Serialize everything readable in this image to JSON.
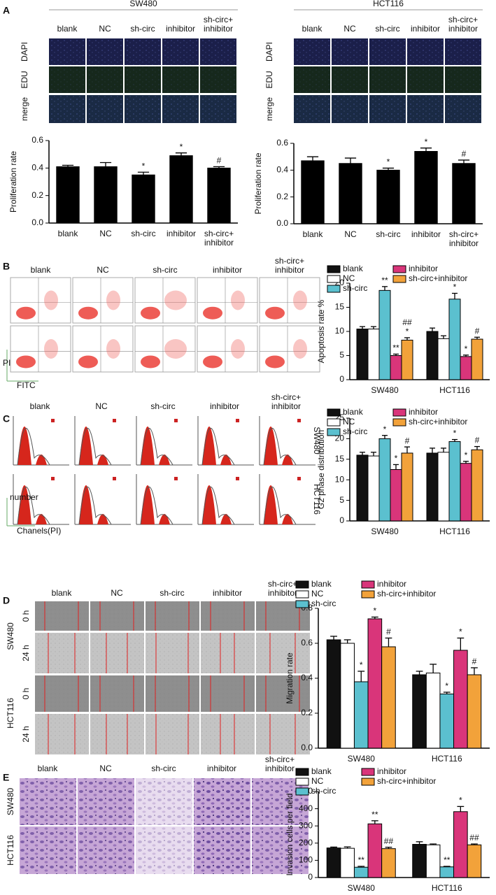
{
  "figure": {
    "panels": [
      "A",
      "B",
      "C",
      "D",
      "E"
    ],
    "cell_lines": [
      "SW480",
      "HCT116"
    ],
    "conditions": [
      "blank",
      "NC",
      "sh-circ",
      "inhibitor",
      "sh-circ+\ninhibitor"
    ],
    "stains": [
      "DAPI",
      "EDU",
      "merge"
    ],
    "flow_axes": [
      "PI",
      "FITC"
    ],
    "cycle_axes": [
      "number",
      "Chanels(PI)"
    ],
    "times": [
      "0 h",
      "24 h"
    ]
  },
  "chart_data": [
    {
      "type": "bar",
      "y_label": "Proliferation rate",
      "categories": [
        "blank",
        "NC",
        "sh-circ",
        "inhibitor",
        "sh-circ+\ninhibitor"
      ],
      "values": [
        0.41,
        0.41,
        0.35,
        0.49,
        0.4
      ],
      "errors": [
        0.01,
        0.03,
        0.02,
        0.02,
        0.01
      ],
      "annotations": [
        null,
        null,
        "*",
        "*",
        "#"
      ],
      "color": "#000000",
      "ylim": [
        0,
        0.6
      ],
      "yticks": [
        {
          "value": 0,
          "label": "0.0"
        },
        0.2,
        0.4,
        0.6
      ]
    },
    {
      "type": "bar",
      "y_label": "Proliferation rate",
      "categories": [
        "blank",
        "NC",
        "sh-circ",
        "inhibitor",
        "sh-circ+\ninhibitor"
      ],
      "values": [
        0.47,
        0.45,
        0.4,
        0.54,
        0.45
      ],
      "errors": [
        0.03,
        0.04,
        0.015,
        0.025,
        0.025
      ],
      "annotations": [
        null,
        null,
        "*",
        "*",
        "#"
      ],
      "color": "#000000",
      "ylim": [
        0,
        0.6
      ],
      "yticks": [
        {
          "value": 0,
          "label": "0.0"
        },
        0.2,
        0.4,
        0.6
      ]
    },
    {
      "type": "grouped_bar",
      "y_label": "Apoptosis rate %",
      "categories": [
        "SW480",
        "HCT116"
      ],
      "series": [
        {
          "name": "blank",
          "color": "#111111",
          "values": [
            10.5,
            10
          ],
          "errors": [
            0.5,
            0.7
          ],
          "annotations": [
            null,
            null
          ]
        },
        {
          "name": "NC",
          "color": "#ffffff",
          "values": [
            10.5,
            8.5
          ],
          "errors": [
            0.5,
            0.6
          ],
          "annotations": [
            null,
            null
          ]
        },
        {
          "name": "sh-circ",
          "color": "#5bc0cf",
          "values": [
            18.5,
            16.7
          ],
          "errors": [
            0.8,
            1.2
          ],
          "annotations": [
            "**",
            "*"
          ]
        },
        {
          "name": "inhibitor",
          "color": "#d9357a",
          "values": [
            5,
            4.8
          ],
          "errors": [
            0.3,
            0.3
          ],
          "annotations": [
            "**",
            "*"
          ]
        },
        {
          "name": "sh-circ+inhibitor",
          "color": "#f2a23a",
          "values": [
            8.2,
            8.4
          ],
          "errors": [
            0.5,
            0.4
          ],
          "annotations": [
            [
              "##",
              "*"
            ],
            "#"
          ]
        }
      ],
      "ylim": [
        0,
        20
      ],
      "yticks": [
        0,
        5,
        10,
        15,
        20
      ]
    },
    {
      "type": "grouped_bar",
      "y_label": "G2 phase distribution",
      "categories": [
        "SW480",
        "HCT116"
      ],
      "series": [
        {
          "name": "blank",
          "color": "#111111",
          "values": [
            16,
            16.5
          ],
          "errors": [
            0.7,
            1.2
          ],
          "annotations": [
            null,
            null
          ]
        },
        {
          "name": "NC",
          "color": "#ffffff",
          "values": [
            15.8,
            16.7
          ],
          "errors": [
            0.9,
            1.0
          ],
          "annotations": [
            null,
            null
          ]
        },
        {
          "name": "sh-circ",
          "color": "#5bc0cf",
          "values": [
            20,
            19.3
          ],
          "errors": [
            0.8,
            0.5
          ],
          "annotations": [
            "*",
            "*"
          ]
        },
        {
          "name": "inhibitor",
          "color": "#d9357a",
          "values": [
            12.5,
            14
          ],
          "errors": [
            1.2,
            0.5
          ],
          "annotations": [
            "*",
            "*"
          ]
        },
        {
          "name": "sh-circ+inhibitor",
          "color": "#f2a23a",
          "values": [
            16.5,
            17.3
          ],
          "errors": [
            1.5,
            0.8
          ],
          "annotations": [
            "#",
            "#"
          ]
        }
      ],
      "ylim": [
        0,
        25
      ],
      "yticks": [
        0,
        5,
        10,
        15,
        20,
        25
      ]
    },
    {
      "type": "grouped_bar",
      "y_label": "Migration rate",
      "categories": [
        "SW480",
        "HCT116"
      ],
      "series": [
        {
          "name": "blank",
          "color": "#111111",
          "values": [
            0.62,
            0.42
          ],
          "errors": [
            0.02,
            0.02
          ],
          "annotations": [
            null,
            null
          ]
        },
        {
          "name": "NC",
          "color": "#ffffff",
          "values": [
            0.6,
            0.43
          ],
          "errors": [
            0.02,
            0.05
          ],
          "annotations": [
            null,
            null
          ]
        },
        {
          "name": "sh-circ",
          "color": "#5bc0cf",
          "values": [
            0.38,
            0.31
          ],
          "errors": [
            0.06,
            0.01
          ],
          "annotations": [
            "*",
            "*"
          ]
        },
        {
          "name": "inhibitor",
          "color": "#d9357a",
          "values": [
            0.74,
            0.56
          ],
          "errors": [
            0.01,
            0.07
          ],
          "annotations": [
            "*",
            "*"
          ]
        },
        {
          "name": "sh-circ+inhibitor",
          "color": "#f2a23a",
          "values": [
            0.58,
            0.42
          ],
          "errors": [
            0.05,
            0.04
          ],
          "annotations": [
            "#",
            "#"
          ]
        }
      ],
      "ylim": [
        0,
        0.8
      ],
      "yticks": [
        {
          "value": 0,
          "label": "0.0"
        },
        0.2,
        0.4,
        0.6,
        0.8
      ]
    },
    {
      "type": "grouped_bar",
      "y_label": "Invasion cells per field",
      "categories": [
        "SW480",
        "HCT116"
      ],
      "series": [
        {
          "name": "blank",
          "color": "#111111",
          "values": [
            172,
            193
          ],
          "errors": [
            5,
            15
          ],
          "annotations": [
            null,
            null
          ]
        },
        {
          "name": "NC",
          "color": "#ffffff",
          "values": [
            170,
            190
          ],
          "errors": [
            8,
            5
          ],
          "annotations": [
            null,
            null
          ]
        },
        {
          "name": "sh-circ",
          "color": "#5bc0cf",
          "values": [
            60,
            62
          ],
          "errors": [
            5,
            3
          ],
          "annotations": [
            "**",
            "**"
          ]
        },
        {
          "name": "inhibitor",
          "color": "#d9357a",
          "values": [
            312,
            383
          ],
          "errors": [
            18,
            30
          ],
          "annotations": [
            "**",
            "*"
          ]
        },
        {
          "name": "sh-circ+inhibitor",
          "color": "#f2a23a",
          "values": [
            168,
            190
          ],
          "errors": [
            8,
            5
          ],
          "annotations": [
            "##",
            "##"
          ]
        }
      ],
      "ylim": [
        0,
        500
      ],
      "yticks": [
        0,
        100,
        200,
        300,
        400,
        500
      ]
    }
  ]
}
